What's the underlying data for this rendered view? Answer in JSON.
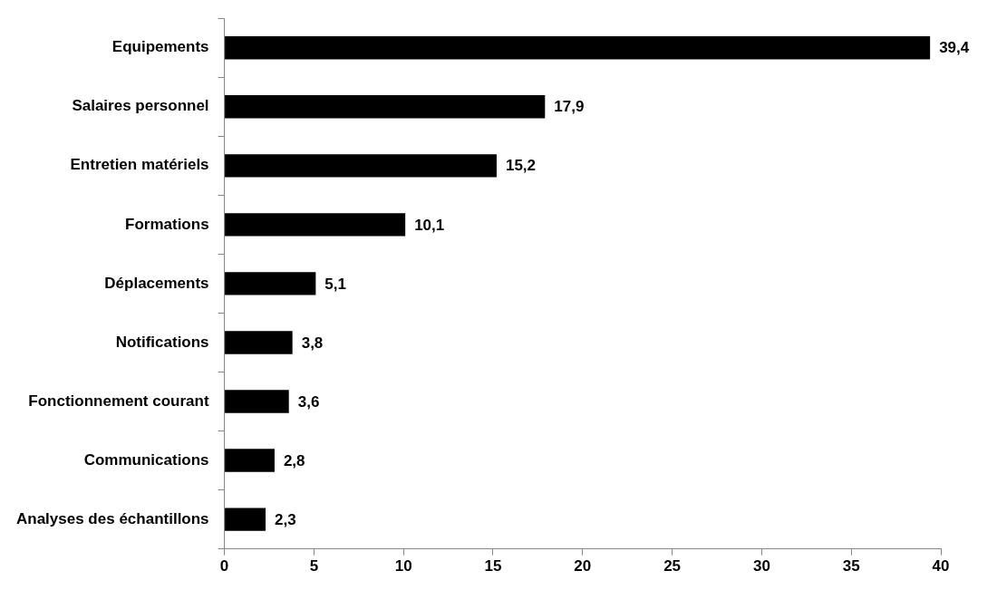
{
  "chart_data": {
    "type": "bar",
    "orientation": "horizontal",
    "categories": [
      "Equipements",
      "Salaires personnel",
      "Entretien matériels",
      "Formations",
      "Déplacements",
      "Notifications",
      "Fonctionnement courant",
      "Communications",
      "Analyses des échantillons"
    ],
    "values": [
      39.4,
      17.9,
      15.2,
      10.1,
      5.1,
      3.8,
      3.6,
      2.8,
      2.3
    ],
    "value_labels": [
      "39,4",
      "17,9",
      "15,2",
      "10,1",
      "5,1",
      "3,8",
      "3,6",
      "2,8",
      "2,3"
    ],
    "color": "#000000",
    "xlim": [
      0,
      40
    ],
    "xticks": [
      0,
      5,
      10,
      15,
      20,
      25,
      30,
      35,
      40
    ],
    "grid": false,
    "legend": false
  }
}
